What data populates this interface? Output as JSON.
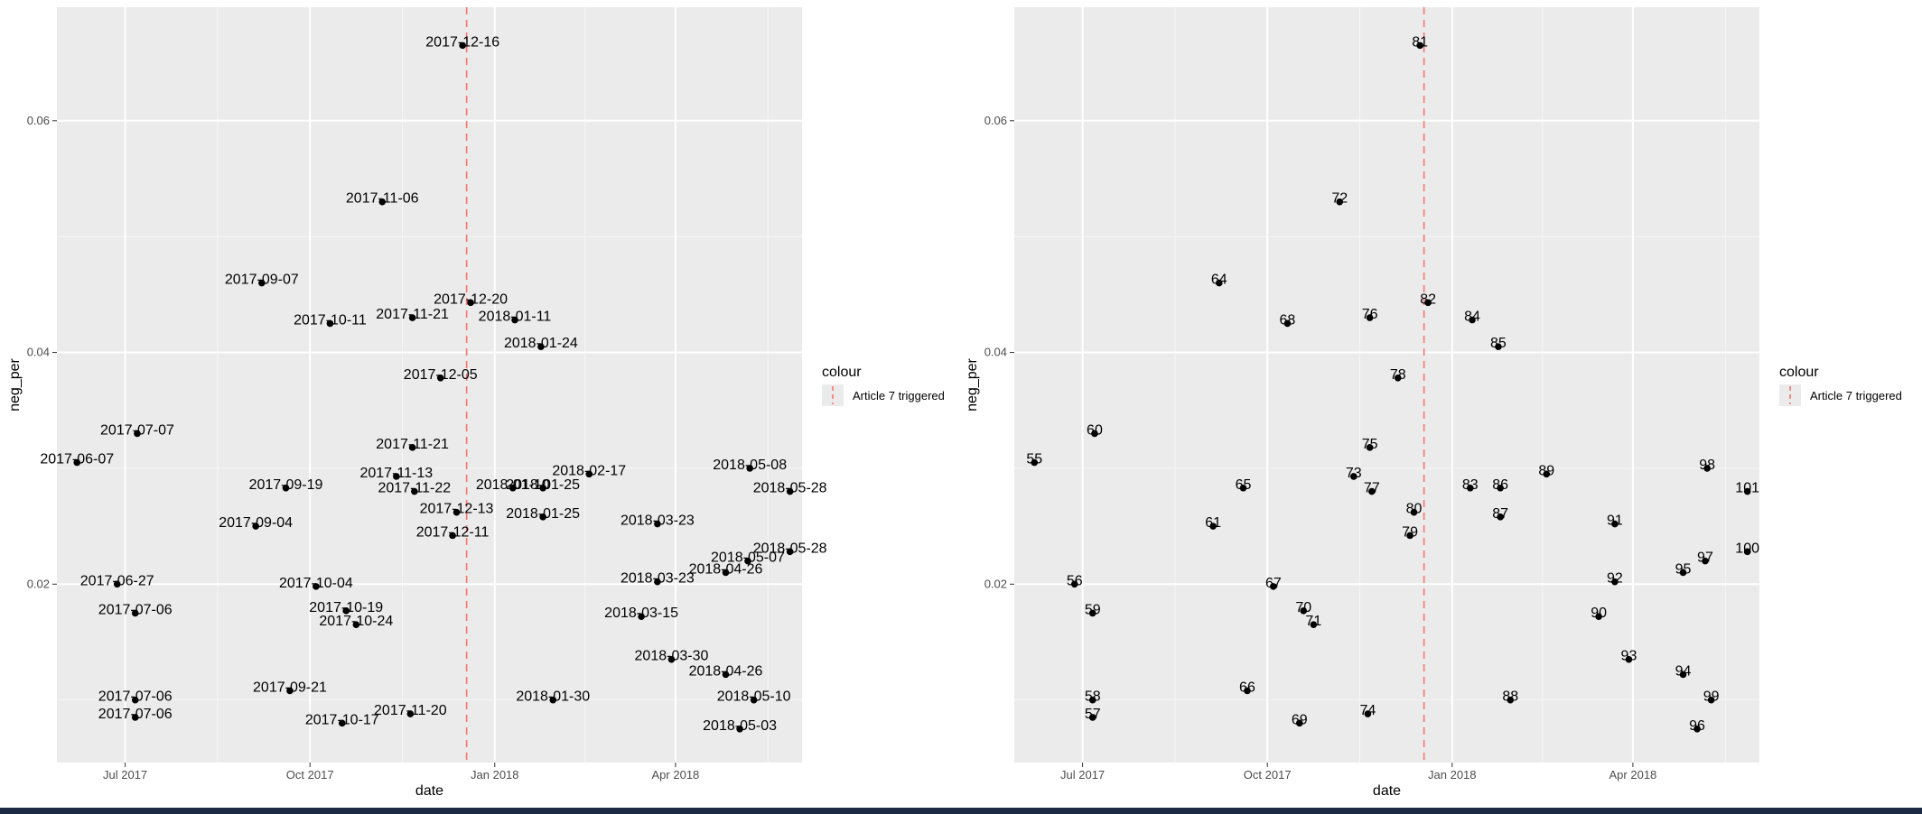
{
  "chart_data": [
    {
      "type": "scatter",
      "xlabel": "date",
      "ylabel": "neg_per",
      "label_field": "date",
      "x_ticks": [
        {
          "value": "2017-07-01",
          "label": "Jul 2017"
        },
        {
          "value": "2017-10-01",
          "label": "Oct 2017"
        },
        {
          "value": "2018-01-01",
          "label": "Jan 2018"
        },
        {
          "value": "2018-04-01",
          "label": "Apr 2018"
        }
      ],
      "xlim": [
        "2017-05-28",
        "2018-06-03"
      ],
      "y_ticks": [
        0.02,
        0.04,
        0.06
      ],
      "ylim": [
        0.0046,
        0.0698
      ],
      "vline": {
        "x": "2017-12-18",
        "legend_title": "colour",
        "legend_label": "Article 7 triggered",
        "color": "#F8766D"
      },
      "grid": true,
      "legend_position": "right",
      "points": [
        {
          "id": "55",
          "date": "2017-06-07",
          "y": 0.0305
        },
        {
          "id": "56",
          "date": "2017-06-27",
          "y": 0.02
        },
        {
          "id": "57",
          "date": "2017-07-06",
          "y": 0.0085
        },
        {
          "id": "58",
          "date": "2017-07-06",
          "y": 0.01
        },
        {
          "id": "59",
          "date": "2017-07-06",
          "y": 0.0175
        },
        {
          "id": "60",
          "date": "2017-07-07",
          "y": 0.033
        },
        {
          "id": "61",
          "date": "2017-09-04",
          "y": 0.025
        },
        {
          "id": "64",
          "date": "2017-09-07",
          "y": 0.046
        },
        {
          "id": "65",
          "date": "2017-09-19",
          "y": 0.0283
        },
        {
          "id": "66",
          "date": "2017-09-21",
          "y": 0.0108
        },
        {
          "id": "67",
          "date": "2017-10-04",
          "y": 0.0198
        },
        {
          "id": "68",
          "date": "2017-10-11",
          "y": 0.0425
        },
        {
          "id": "69",
          "date": "2017-10-17",
          "y": 0.008
        },
        {
          "id": "70",
          "date": "2017-10-19",
          "y": 0.0177
        },
        {
          "id": "71",
          "date": "2017-10-24",
          "y": 0.0165
        },
        {
          "id": "72",
          "date": "2017-11-06",
          "y": 0.053
        },
        {
          "id": "73",
          "date": "2017-11-13",
          "y": 0.0293
        },
        {
          "id": "74",
          "date": "2017-11-20",
          "y": 0.0088
        },
        {
          "id": "75",
          "date": "2017-11-21",
          "y": 0.0318
        },
        {
          "id": "76",
          "date": "2017-11-21",
          "y": 0.043
        },
        {
          "id": "77",
          "date": "2017-11-22",
          "y": 0.028
        },
        {
          "id": "78",
          "date": "2017-12-05",
          "y": 0.0378
        },
        {
          "id": "79",
          "date": "2017-12-11",
          "y": 0.0242
        },
        {
          "id": "80",
          "date": "2017-12-13",
          "y": 0.0262
        },
        {
          "id": "81",
          "date": "2017-12-16",
          "y": 0.0665
        },
        {
          "id": "82",
          "date": "2017-12-20",
          "y": 0.0443
        },
        {
          "id": "83",
          "date": "2018-01-10",
          "y": 0.0283
        },
        {
          "id": "84",
          "date": "2018-01-11",
          "y": 0.0428
        },
        {
          "id": "85",
          "date": "2018-01-24",
          "y": 0.0405
        },
        {
          "id": "86",
          "date": "2018-01-25",
          "y": 0.0283
        },
        {
          "id": "87",
          "date": "2018-01-25",
          "y": 0.0258
        },
        {
          "id": "88",
          "date": "2018-01-30",
          "y": 0.01
        },
        {
          "id": "89",
          "date": "2018-02-17",
          "y": 0.0295
        },
        {
          "id": "90",
          "date": "2018-03-15",
          "y": 0.0172
        },
        {
          "id": "91",
          "date": "2018-03-23",
          "y": 0.0252
        },
        {
          "id": "92",
          "date": "2018-03-23",
          "y": 0.0202
        },
        {
          "id": "93",
          "date": "2018-03-30",
          "y": 0.0135
        },
        {
          "id": "94",
          "date": "2018-04-26",
          "y": 0.0122
        },
        {
          "id": "95",
          "date": "2018-04-26",
          "y": 0.021
        },
        {
          "id": "96",
          "date": "2018-05-03",
          "y": 0.0075
        },
        {
          "id": "97",
          "date": "2018-05-07",
          "y": 0.022
        },
        {
          "id": "98",
          "date": "2018-05-08",
          "y": 0.03
        },
        {
          "id": "99",
          "date": "2018-05-10",
          "y": 0.01
        },
        {
          "id": "100",
          "date": "2018-05-28",
          "y": 0.0228
        },
        {
          "id": "101",
          "date": "2018-05-28",
          "y": 0.028
        }
      ]
    },
    {
      "type": "scatter",
      "xlabel": "date",
      "ylabel": "neg_per",
      "label_field": "id",
      "x_ticks": [
        {
          "value": "2017-07-01",
          "label": "Jul 2017"
        },
        {
          "value": "2017-10-01",
          "label": "Oct 2017"
        },
        {
          "value": "2018-01-01",
          "label": "Jan 2018"
        },
        {
          "value": "2018-04-01",
          "label": "Apr 2018"
        }
      ],
      "xlim": [
        "2017-05-28",
        "2018-06-03"
      ],
      "y_ticks": [
        0.02,
        0.04,
        0.06
      ],
      "ylim": [
        0.0046,
        0.0698
      ],
      "vline": {
        "x": "2017-12-18",
        "legend_title": "colour",
        "legend_label": "Article 7 triggered",
        "color": "#F8766D"
      },
      "grid": true,
      "legend_position": "right",
      "points": "same"
    }
  ]
}
